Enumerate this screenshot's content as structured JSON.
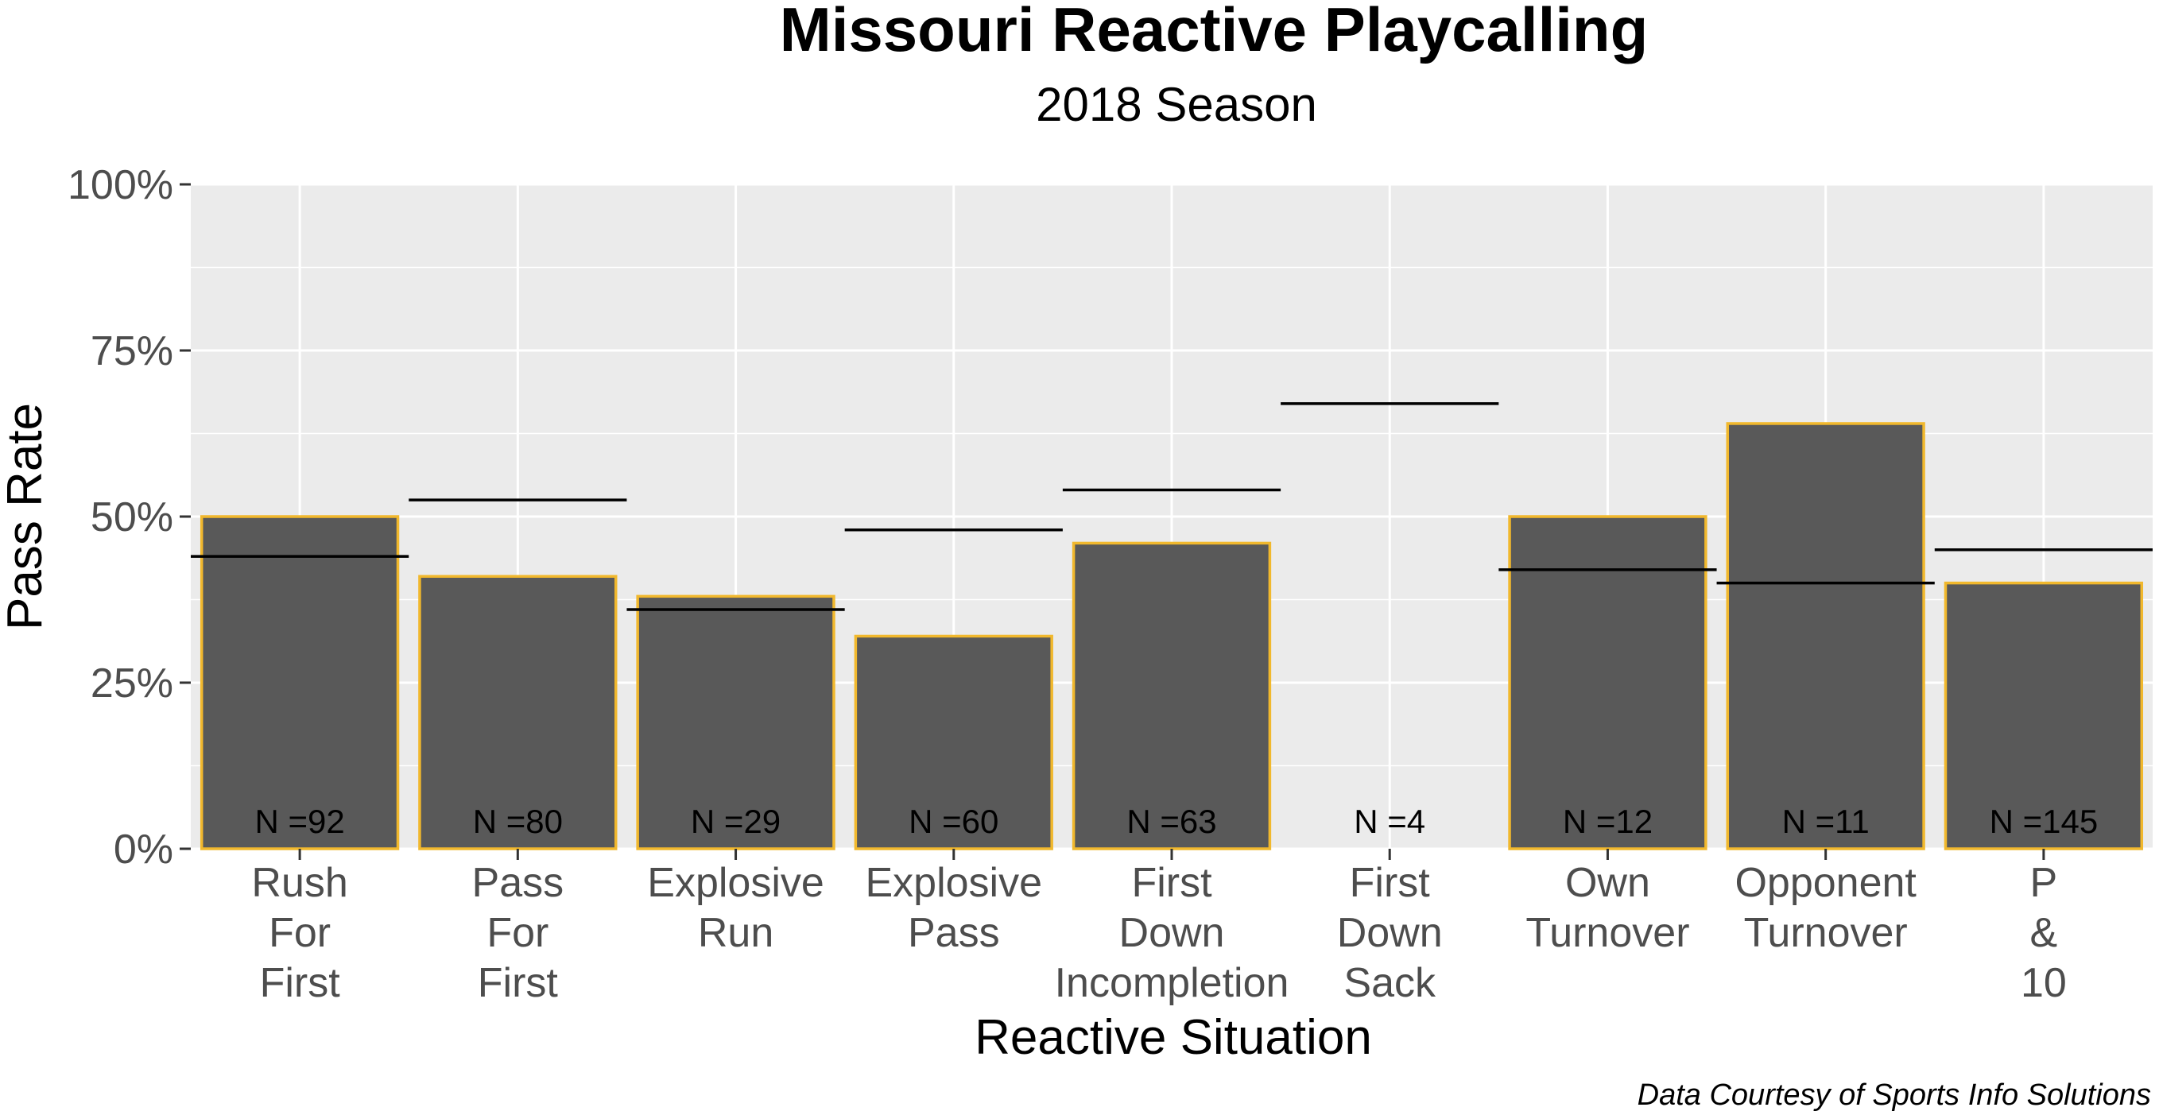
{
  "chart_data": {
    "type": "bar",
    "title": "Missouri Reactive Playcalling",
    "subtitle": "2018 Season",
    "xlabel": "Reactive Situation",
    "ylabel": "Pass Rate",
    "caption": "Data Courtesy of Sports Info Solutions",
    "ylim": [
      0,
      1
    ],
    "y_ticks": [
      0,
      0.25,
      0.5,
      0.75,
      1.0
    ],
    "y_tick_labels": [
      "0%",
      "25%",
      "50%",
      "75%",
      "100%"
    ],
    "grid": true,
    "categories": [
      [
        "Rush",
        "For",
        "First"
      ],
      [
        "Pass",
        "For",
        "First"
      ],
      [
        "Explosive",
        "Run"
      ],
      [
        "Explosive",
        "Pass"
      ],
      [
        "First",
        "Down",
        "Incompletion"
      ],
      [
        "First",
        "Down",
        "Sack"
      ],
      [
        "Own",
        "Turnover"
      ],
      [
        "Opponent",
        "Turnover"
      ],
      [
        "P",
        "&",
        "10"
      ]
    ],
    "values": [
      0.5,
      0.41,
      0.38,
      0.32,
      0.46,
      0.0,
      0.5,
      0.64,
      0.4
    ],
    "reference_values": [
      0.44,
      0.525,
      0.36,
      0.48,
      0.54,
      0.67,
      0.42,
      0.4,
      0.45
    ],
    "n_labels": [
      "N =92",
      "N =80",
      "N =29",
      "N =60",
      "N =63",
      "N =4",
      "N =12",
      "N =11",
      "N =145"
    ],
    "colors": {
      "bar_fill": "#595959",
      "bar_outline": "#F1B82D",
      "panel_bg": "#EBEBEB",
      "grid": "#FFFFFF",
      "reference_line": "#000000"
    }
  }
}
